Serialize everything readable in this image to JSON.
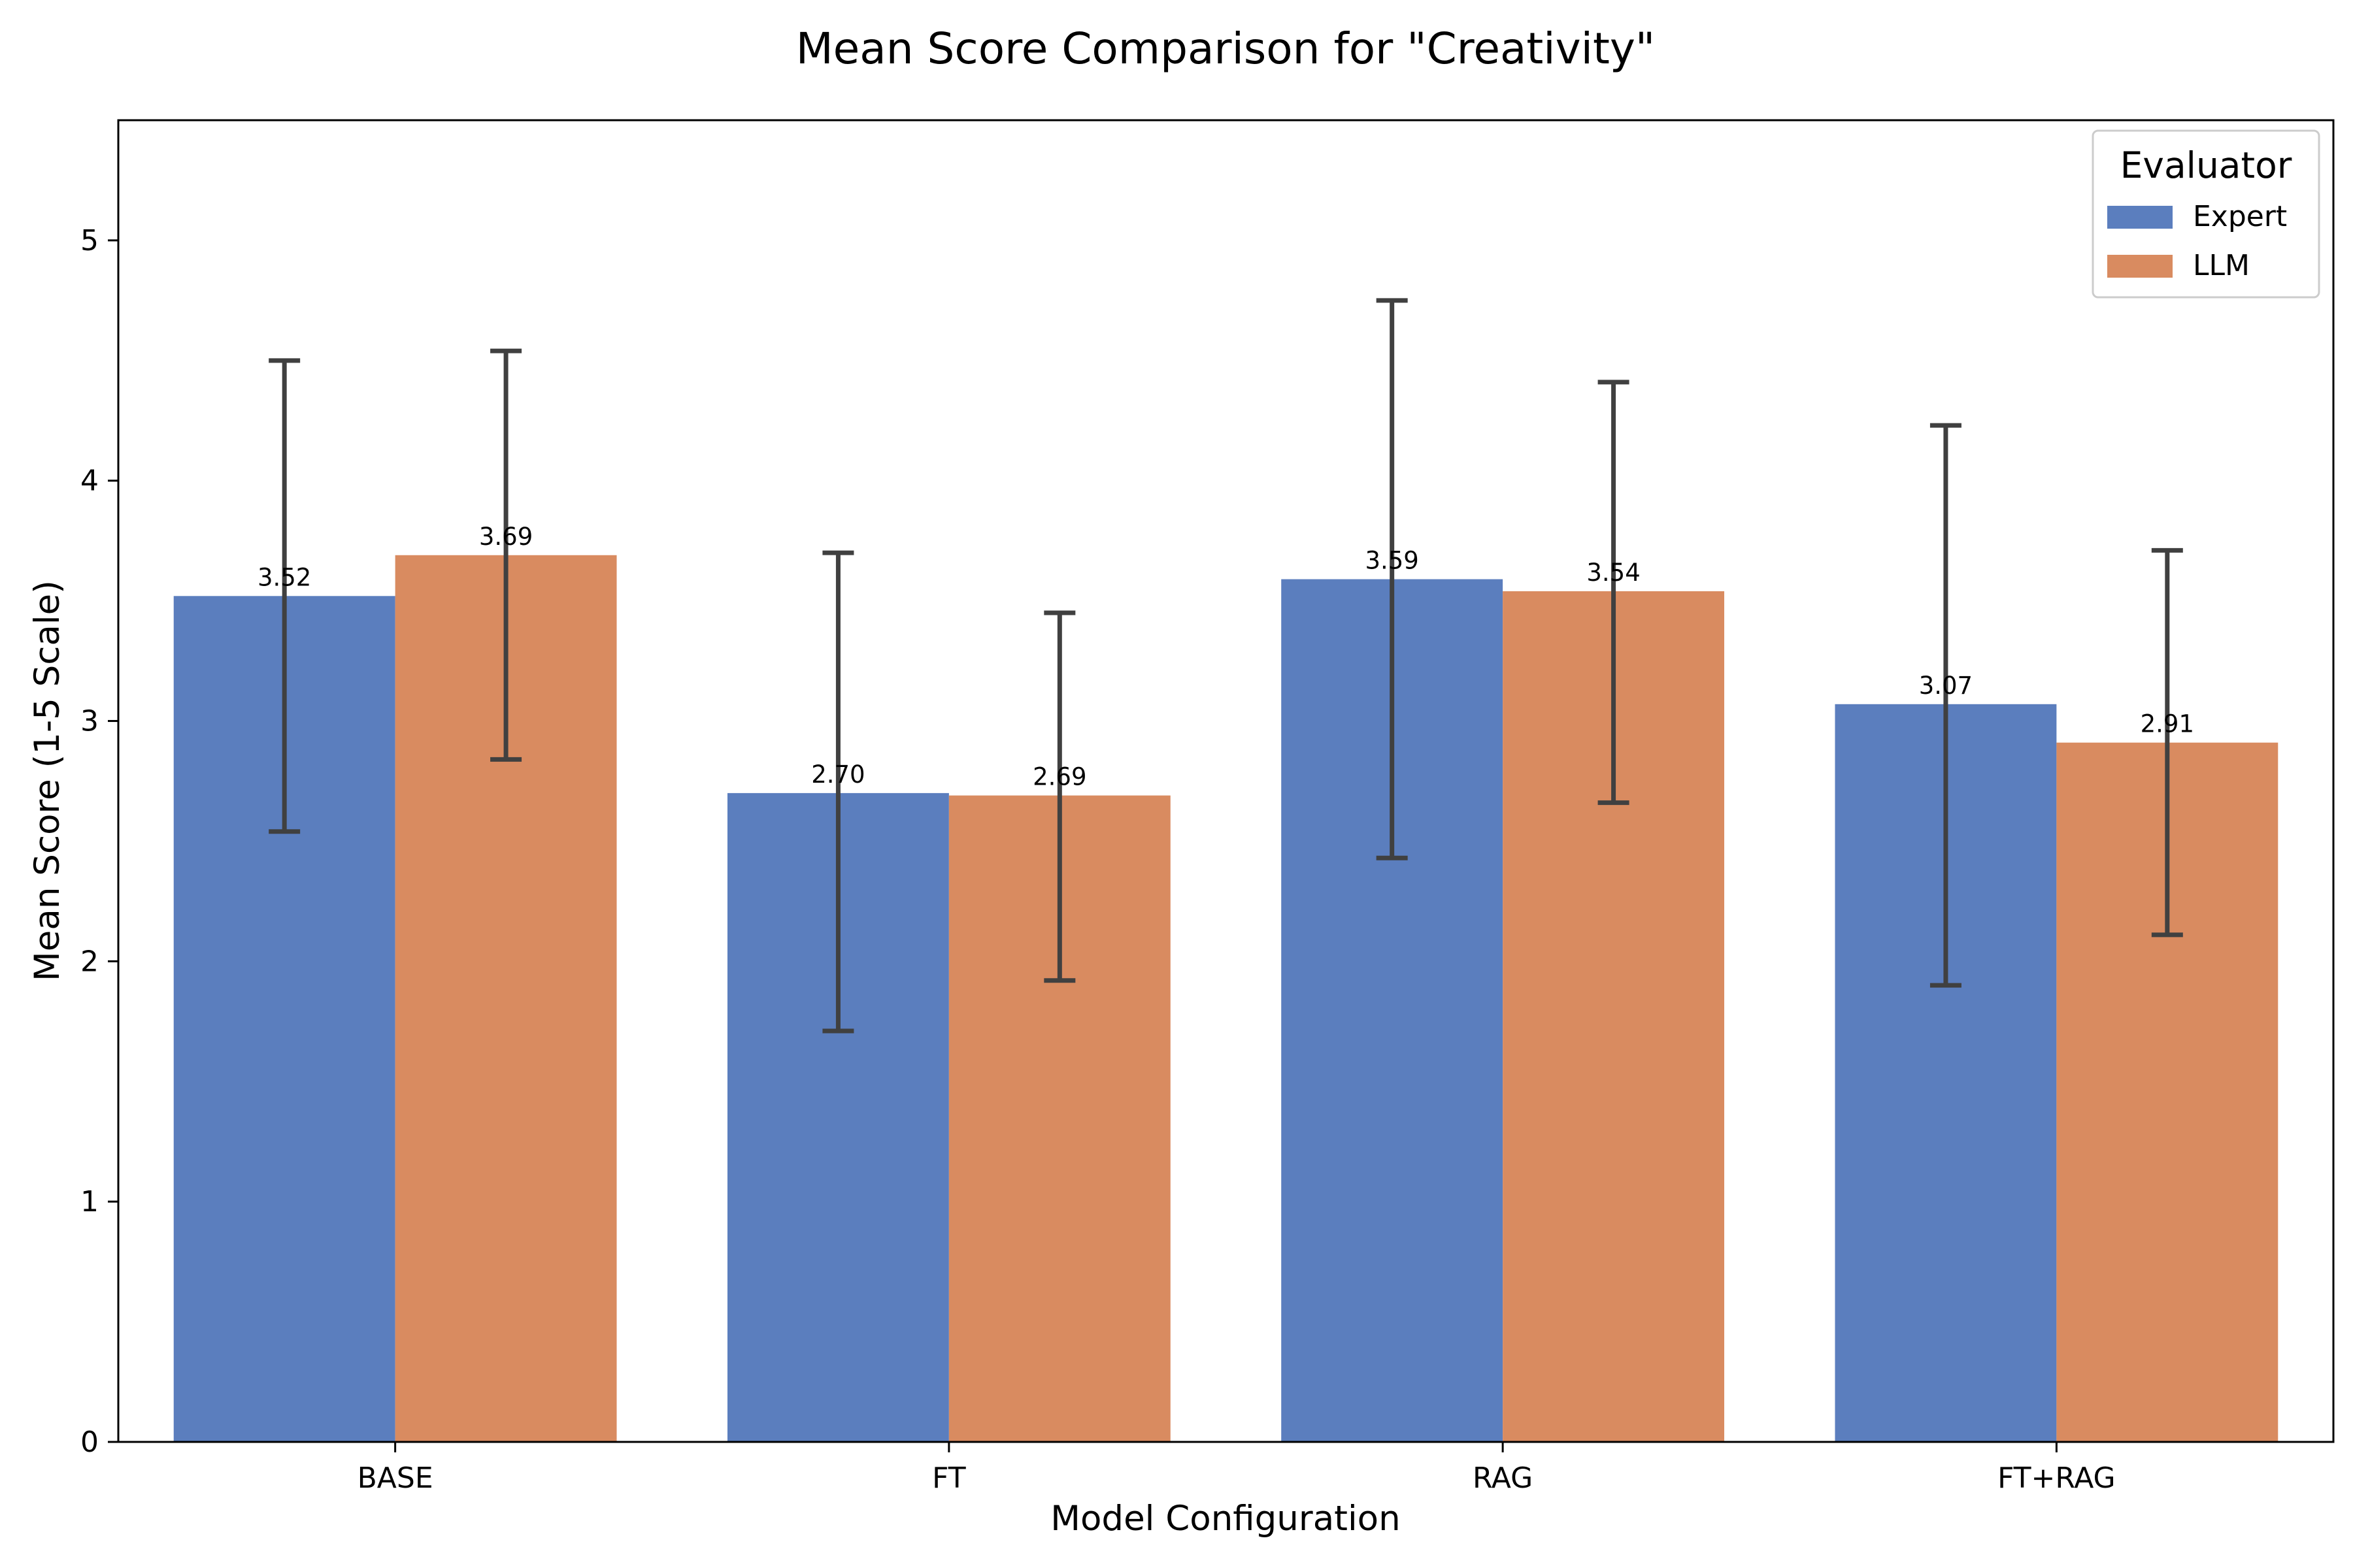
{
  "chart_data": {
    "type": "bar",
    "title": "Mean Score Comparison for \"Creativity\"",
    "xlabel": "Model Configuration",
    "ylabel": "Mean Score (1-5 Scale)",
    "categories": [
      "BASE",
      "FT",
      "RAG",
      "FT+RAG"
    ],
    "ylim": [
      0,
      5.5
    ],
    "yticks": [
      0,
      1,
      2,
      3,
      4,
      5
    ],
    "grid": false,
    "legend": {
      "title": "Evaluator",
      "placement": "top-right"
    },
    "series": [
      {
        "name": "Expert",
        "color": "#5b7ebe",
        "values": [
          3.52,
          2.7,
          3.59,
          3.07
        ],
        "labels": [
          "3.52",
          "2.70",
          "3.59",
          "3.07"
        ],
        "err_low": [
          2.54,
          1.71,
          2.43,
          1.9
        ],
        "err_high": [
          4.5,
          3.7,
          4.75,
          4.23
        ]
      },
      {
        "name": "LLM",
        "color": "#d98b60",
        "values": [
          3.69,
          2.69,
          3.54,
          2.91
        ],
        "labels": [
          "3.69",
          "2.69",
          "3.54",
          "2.91"
        ],
        "err_low": [
          2.84,
          1.92,
          2.66,
          2.11
        ],
        "err_high": [
          4.54,
          3.45,
          4.41,
          3.71
        ]
      }
    ],
    "errorbar_color": "#404040"
  }
}
